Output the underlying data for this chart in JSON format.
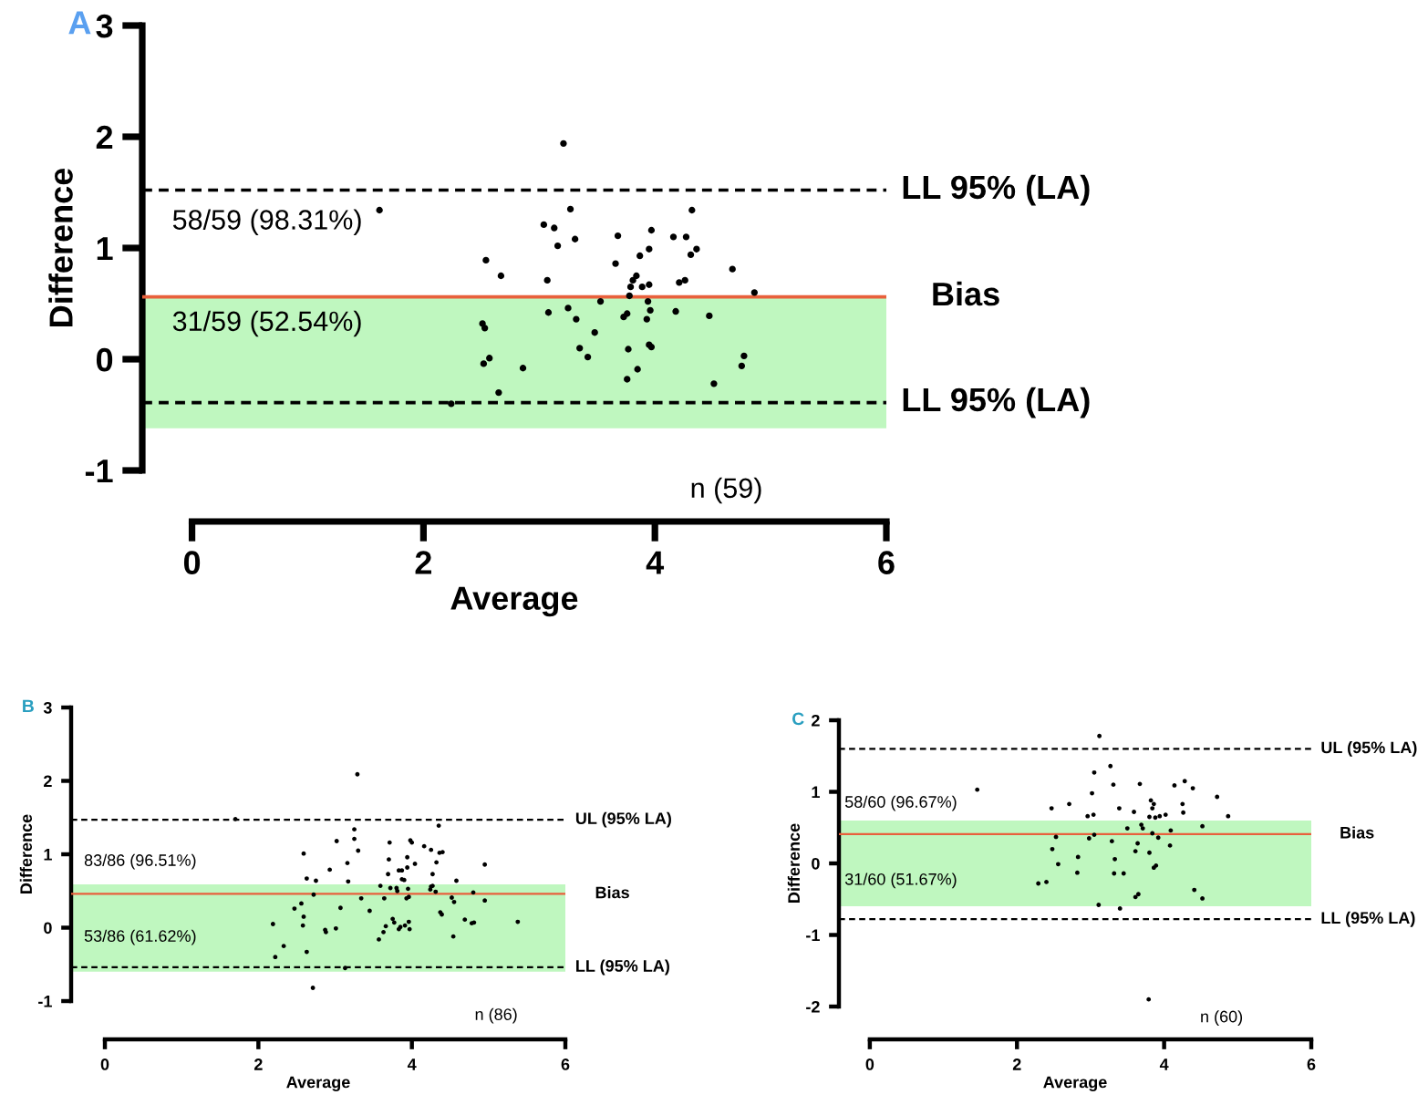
{
  "chart_data": [
    {
      "type": "scatter",
      "title": "A",
      "xlabel": "Average",
      "ylabel": "Difference",
      "xlim": [
        -0.43,
        6
      ],
      "ylim": [
        -1,
        3
      ],
      "xticks": [
        0,
        2,
        4,
        6
      ],
      "yticks": [
        -1,
        0,
        1,
        2,
        3
      ],
      "grid": false,
      "marker": "circle",
      "series": [
        {
          "color": "#000000",
          "x": [
            1.62,
            3.21,
            3.27,
            3.04,
            3.13,
            3.31,
            3.16,
            3.68,
            3.97,
            4.32,
            4.16,
            4.27,
            4.36,
            4.31,
            3.95,
            3.87,
            3.66,
            4.67,
            2.54,
            2.67,
            3.07,
            3.84,
            3.81,
            4.26,
            4.21,
            3.79,
            3.89,
            3.95,
            3.78,
            4.86,
            3.53,
            3.25,
            3.08,
            3.94,
            3.96,
            4.18,
            3.76,
            3.73,
            3.93,
            4.47,
            3.32,
            2.51,
            2.53,
            3.48,
            3.95,
            3.97,
            3.35,
            3.77,
            3.42,
            2.57,
            2.52,
            4.77,
            4.75,
            2.86,
            3.85,
            3.76,
            4.51,
            2.65,
            2.24
          ],
          "values": [
            1.34,
            1.94,
            1.35,
            1.21,
            1.18,
            1.08,
            1.02,
            1.11,
            1.16,
            1.34,
            1.1,
            1.1,
            0.99,
            0.94,
            0.99,
            0.93,
            0.86,
            0.81,
            0.89,
            0.75,
            0.71,
            0.75,
            0.71,
            0.71,
            0.69,
            0.65,
            0.65,
            0.67,
            0.57,
            0.6,
            0.52,
            0.46,
            0.42,
            0.52,
            0.44,
            0.43,
            0.41,
            0.38,
            0.36,
            0.39,
            0.36,
            0.32,
            0.28,
            0.24,
            0.13,
            0.11,
            0.1,
            0.09,
            0.02,
            0.01,
            -0.04,
            0.03,
            -0.06,
            -0.08,
            -0.09,
            -0.18,
            -0.22,
            -0.3,
            -0.4
          ]
        }
      ],
      "ref_lines": [
        {
          "axis": "y",
          "value": 1.52,
          "label": "LL 95% (LA)",
          "color": "#000000",
          "line_style": "dashed"
        },
        {
          "axis": "y",
          "value": 0.56,
          "label": "Bias",
          "color": "#e8603c",
          "line_style": "solid"
        },
        {
          "axis": "y",
          "value": -0.39,
          "label": "LL 95% (LA)",
          "color": "#000000",
          "line_style": "dashed"
        }
      ],
      "bands": [
        {
          "axis": "y",
          "from": -0.62,
          "to": 0.56,
          "color": "#bff7bf"
        }
      ],
      "annotations": [
        "58/59 (98.31%)",
        "31/59 (52.54%)",
        "n (59)"
      ]
    },
    {
      "type": "scatter",
      "title": "B",
      "xlabel": "Average",
      "ylabel": "Difference",
      "xlim": [
        -0.44,
        6
      ],
      "ylim": [
        -1,
        3
      ],
      "xticks": [
        0,
        2,
        4,
        6
      ],
      "yticks": [
        -1,
        0,
        1,
        2,
        3
      ],
      "grid": false,
      "marker": "circle",
      "series": [
        {
          "color": "#000000",
          "x": [
            3.29,
            1.7,
            4.35,
            3.25,
            3.25,
            3.02,
            3.71,
            3.98,
            4.0,
            3.3,
            4.16,
            4.25,
            4.36,
            4.4,
            2.59,
            3.7,
            3.94,
            4.04,
            3.16,
            4.95,
            4.32,
            2.93,
            3.83,
            3.87,
            3.69,
            4.27,
            3.94,
            2.63,
            2.75,
            3.17,
            3.87,
            4.27,
            4.58,
            3.59,
            3.72,
            3.8,
            3.95,
            4.25,
            4.24,
            3.9,
            2.72,
            3.34,
            3.64,
            3.81,
            3.93,
            3.96,
            4.31,
            4.52,
            4.55,
            4.8,
            4.95,
            2.56,
            2.47,
            3.07,
            3.45,
            4.69,
            4.78,
            4.81,
            4.37,
            4.39,
            5.38,
            3.66,
            3.75,
            3.77,
            3.85,
            3.91,
            3.96,
            3.97,
            2.19,
            2.59,
            2.58,
            3.63,
            3.83,
            4.54,
            2.87,
            2.88,
            3.01,
            3.57,
            2.33,
            2.22,
            2.63,
            3.13,
            2.71
          ],
          "values": [
            2.09,
            1.48,
            1.39,
            1.34,
            1.21,
            1.18,
            1.16,
            1.19,
            1.16,
            1.05,
            1.11,
            1.06,
            1.02,
            1.03,
            1.01,
            0.93,
            0.96,
            0.87,
            0.88,
            0.86,
            0.89,
            0.79,
            0.78,
            0.78,
            0.73,
            0.73,
            0.82,
            0.67,
            0.64,
            0.63,
            0.66,
            0.57,
            0.64,
            0.57,
            0.54,
            0.54,
            0.53,
            0.56,
            0.52,
            0.65,
            0.45,
            0.4,
            0.4,
            0.5,
            0.4,
            0.42,
            0.49,
            0.41,
            0.35,
            0.48,
            0.37,
            0.33,
            0.26,
            0.27,
            0.23,
            0.11,
            0.06,
            0.07,
            0.21,
            0.18,
            0.08,
            0.02,
            0.12,
            0.07,
            0.01,
            0.03,
            0.08,
            -0.02,
            0.05,
            0.15,
            0.03,
            -0.06,
            -0.02,
            -0.12,
            -0.03,
            -0.06,
            -0.01,
            -0.16,
            -0.25,
            -0.4,
            -0.33,
            -0.55,
            -0.82
          ]
        }
      ],
      "ref_lines": [
        {
          "axis": "y",
          "value": 1.47,
          "label": "UL (95% LA)",
          "color": "#000000",
          "line_style": "dashed"
        },
        {
          "axis": "y",
          "value": 0.46,
          "label": "Bias",
          "color": "#e8603c",
          "line_style": "solid"
        },
        {
          "axis": "y",
          "value": -0.54,
          "label": "LL (95% LA)",
          "color": "#000000",
          "line_style": "dashed"
        }
      ],
      "bands": [
        {
          "axis": "y",
          "from": -0.6,
          "to": 0.59,
          "color": "#bff7bf"
        }
      ],
      "annotations": [
        "83/86 (96.51%)",
        "53/86 (61.62%)",
        "n (86)"
      ]
    },
    {
      "type": "scatter",
      "title": "C",
      "xlabel": "Average",
      "ylabel": "Difference",
      "xlim": [
        -0.42,
        6
      ],
      "ylim": [
        -2,
        2
      ],
      "xticks": [
        0,
        2,
        4,
        6
      ],
      "yticks": [
        -2,
        -1,
        0,
        1,
        2
      ],
      "grid": false,
      "marker": "circle",
      "series": [
        {
          "color": "#000000",
          "x": [
            3.12,
            1.46,
            3.05,
            3.27,
            3.31,
            3.67,
            4.14,
            4.28,
            4.39,
            4.72,
            3.02,
            2.71,
            2.47,
            3.39,
            3.59,
            3.82,
            3.86,
            3.84,
            4.02,
            4.25,
            4.26,
            4.87,
            2.96,
            3.04,
            3.8,
            3.88,
            3.94,
            3.5,
            3.69,
            3.71,
            4.52,
            4.09,
            2.53,
            2.98,
            3.05,
            3.29,
            3.64,
            3.84,
            3.92,
            2.48,
            3.61,
            3.8,
            4.08,
            2.83,
            3.33,
            2.56,
            2.82,
            3.32,
            3.45,
            3.89,
            3.86,
            2.29,
            2.4,
            3.61,
            3.65,
            4.41,
            4.52,
            3.11,
            3.4,
            3.79
          ],
          "values": [
            1.78,
            1.03,
            1.27,
            1.36,
            1.1,
            1.11,
            1.09,
            1.15,
            1.05,
            0.93,
            0.98,
            0.83,
            0.77,
            0.77,
            0.72,
            0.88,
            0.83,
            0.77,
            0.68,
            0.83,
            0.71,
            0.66,
            0.66,
            0.68,
            0.65,
            0.64,
            0.66,
            0.49,
            0.54,
            0.49,
            0.52,
            0.46,
            0.37,
            0.35,
            0.4,
            0.31,
            0.28,
            0.42,
            0.36,
            0.2,
            0.17,
            0.15,
            0.25,
            0.09,
            0.06,
            -0.01,
            -0.13,
            -0.14,
            -0.14,
            -0.03,
            -0.06,
            -0.28,
            -0.26,
            -0.47,
            -0.43,
            -0.37,
            -0.49,
            -0.58,
            -0.63,
            -1.9
          ]
        }
      ],
      "ref_lines": [
        {
          "axis": "y",
          "value": 1.6,
          "label": "UL (95% LA)",
          "color": "#000000",
          "line_style": "dashed"
        },
        {
          "axis": "y",
          "value": 0.41,
          "label": "Bias",
          "color": "#e8603c",
          "line_style": "solid"
        },
        {
          "axis": "y",
          "value": -0.78,
          "label": "LL (95% LA)",
          "color": "#000000",
          "line_style": "dashed"
        }
      ],
      "bands": [
        {
          "axis": "y",
          "from": -0.6,
          "to": 0.6,
          "color": "#bff7bf"
        }
      ],
      "annotations": [
        "58/60 (96.67%)",
        "31/60 (51.67%)",
        "n (60)"
      ]
    }
  ]
}
